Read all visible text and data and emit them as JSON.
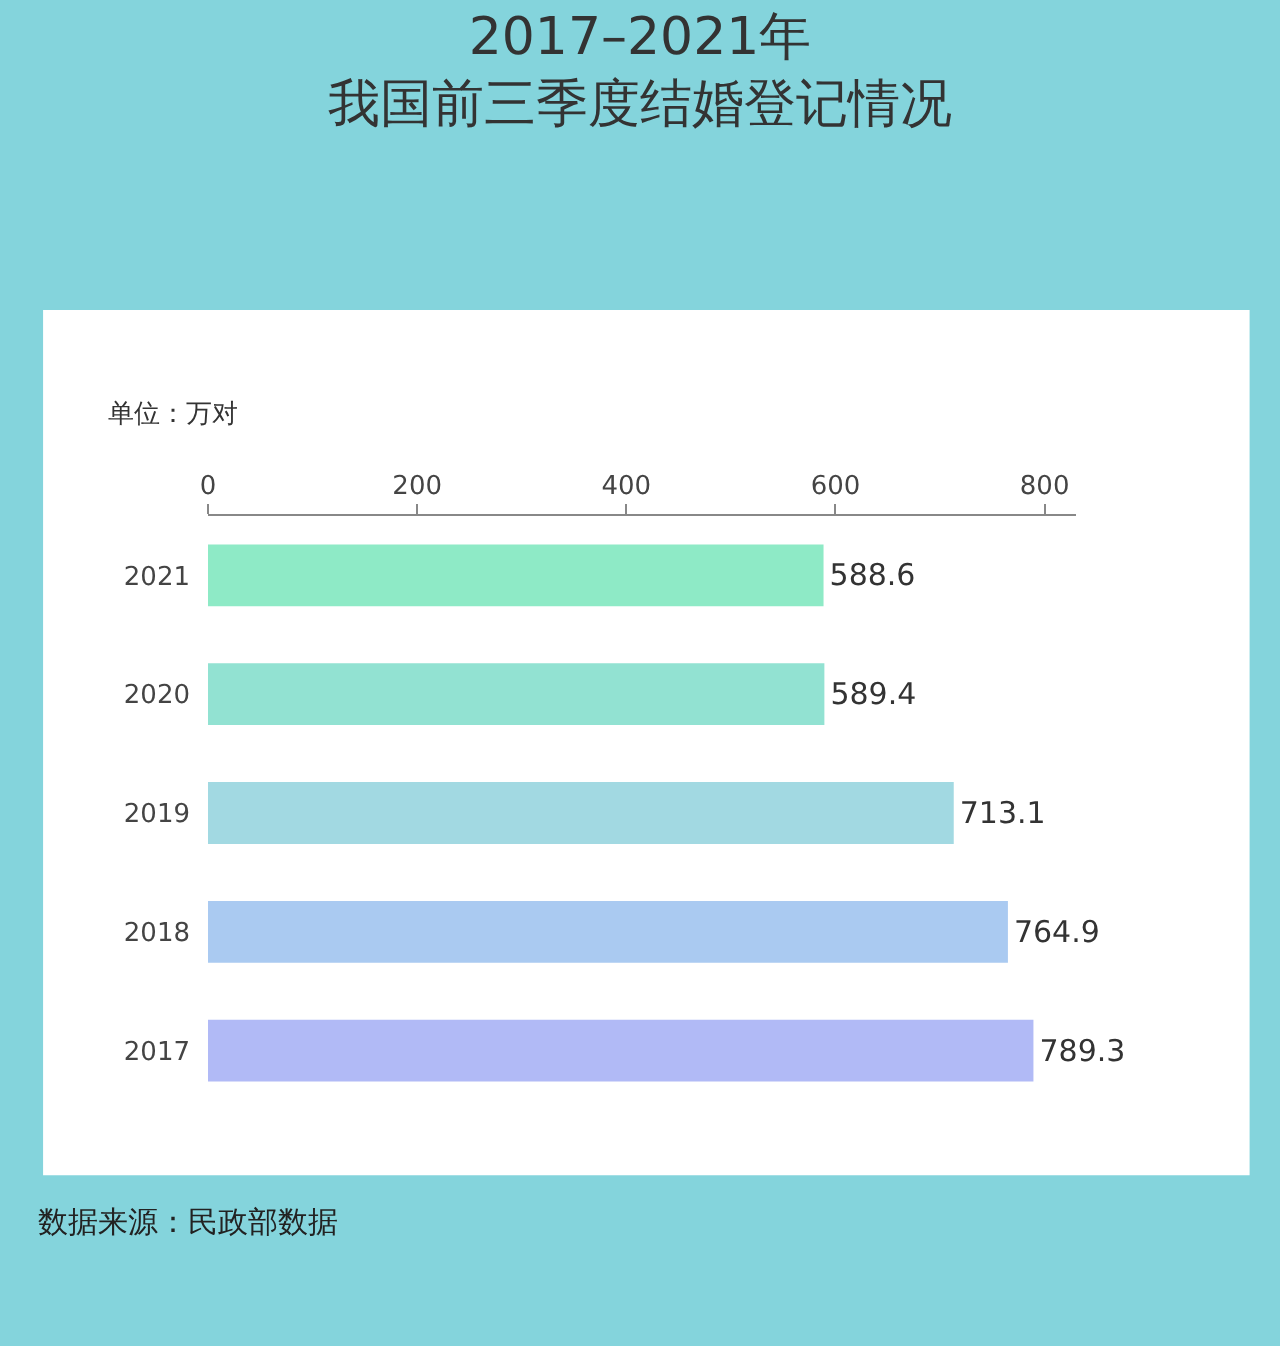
{
  "chart_data": {
    "type": "bar",
    "orientation": "horizontal",
    "title": "2017–2021年我国前三季度结婚登记情况",
    "categories": [
      "2021",
      "2020",
      "2019",
      "2018",
      "2017"
    ],
    "values": [
      588.6,
      589.4,
      713.1,
      764.9,
      789.3
    ],
    "colors": [
      "#8eeac6",
      "#92e2d2",
      "#a2d9e2",
      "#aacaf1",
      "#b1baf6"
    ],
    "xlim": [
      0,
      830
    ],
    "xticks": [
      0,
      200,
      400,
      600,
      800
    ],
    "data_labels": true,
    "annotations": [
      "单位：万对",
      "数据来源：民政部数据"
    ]
  }
}
